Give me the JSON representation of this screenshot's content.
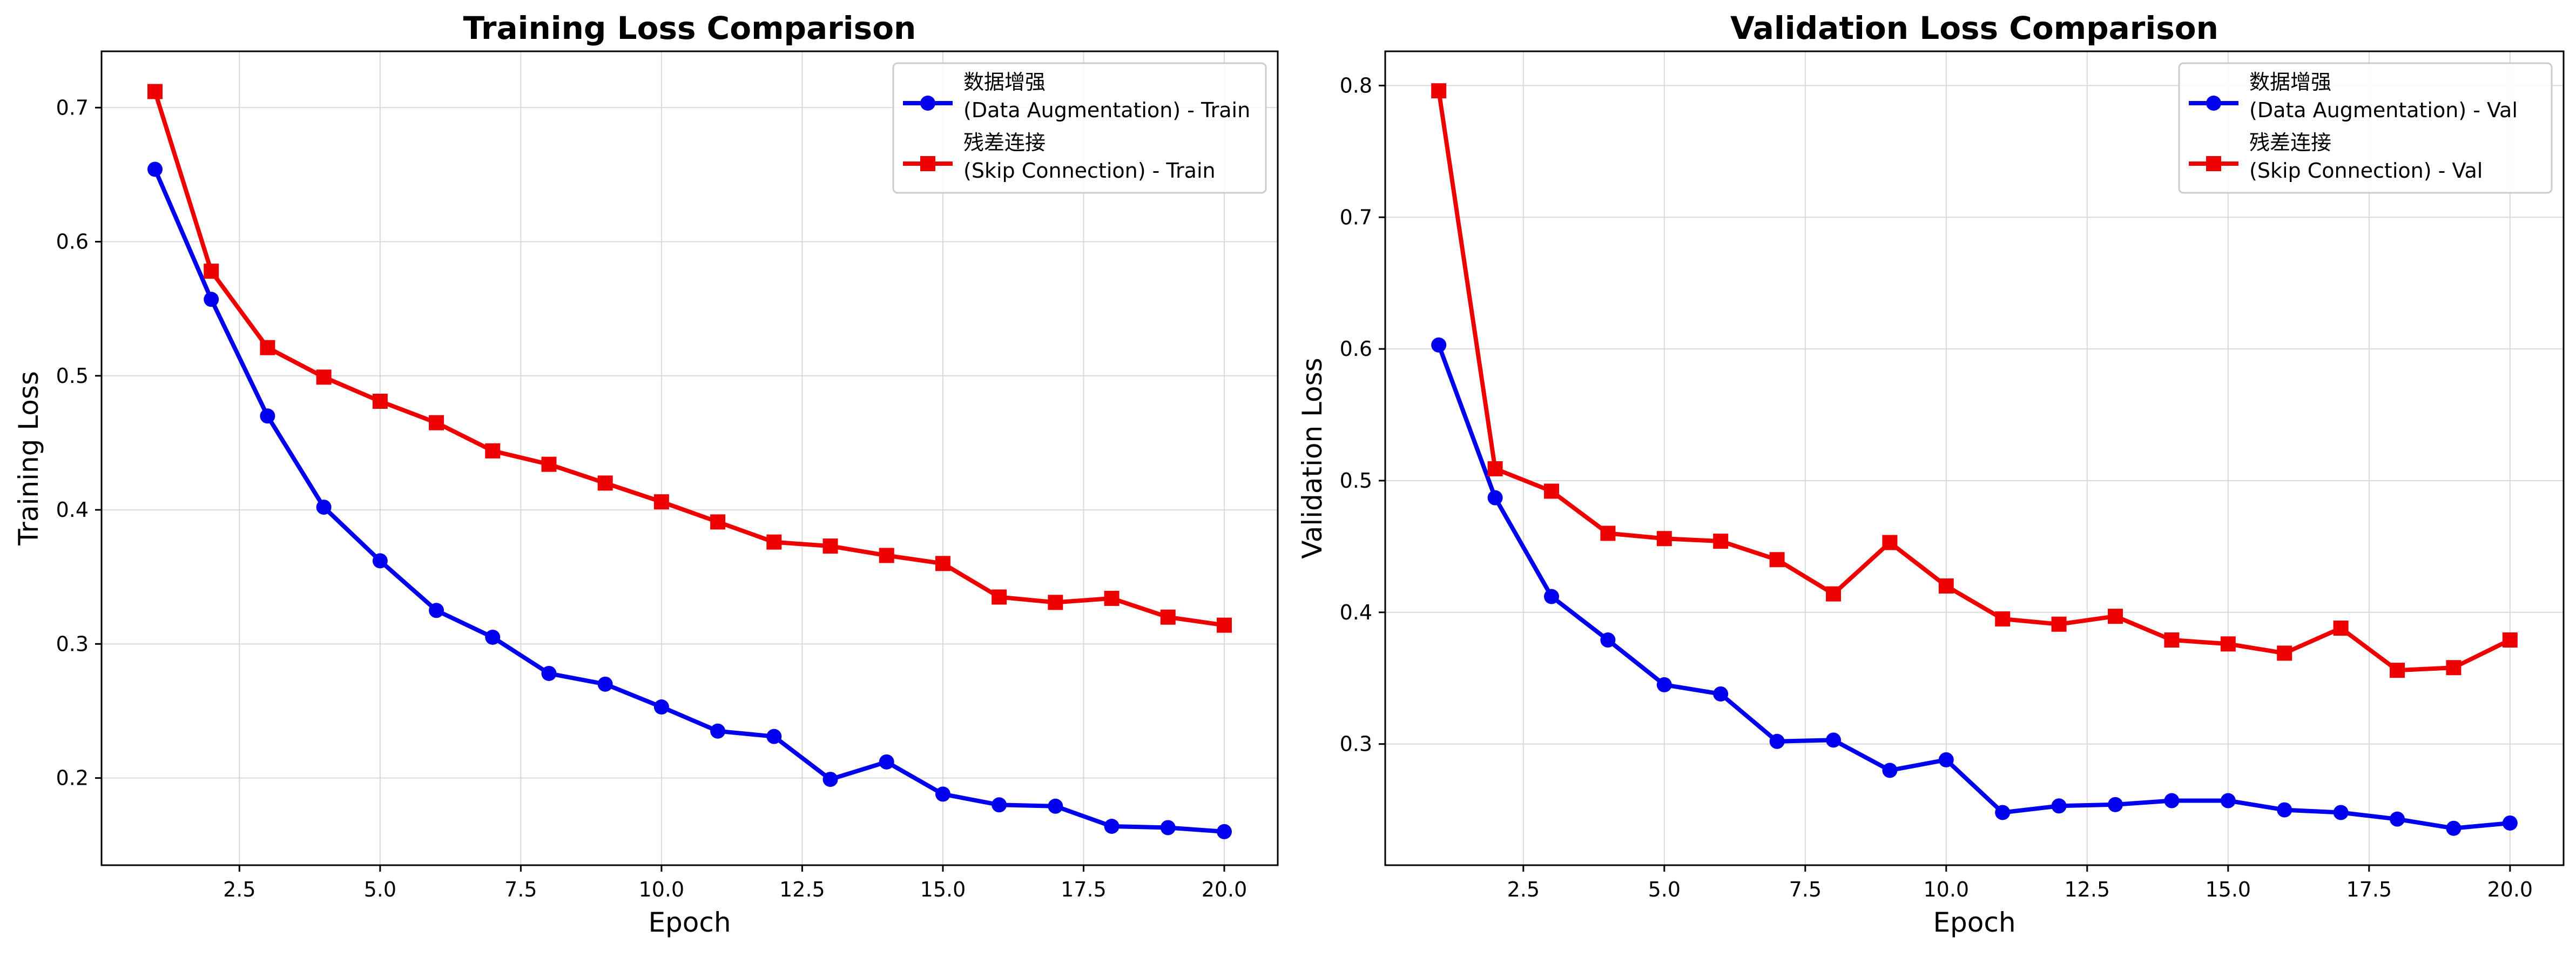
{
  "chart_data": [
    {
      "type": "line",
      "title": "Training Loss Comparison",
      "xlabel": "Epoch",
      "ylabel": "Training Loss",
      "xlim": [
        0.05,
        20.95
      ],
      "ylim": [
        0.135,
        0.742
      ],
      "xticks": [
        2.5,
        5.0,
        7.5,
        10.0,
        12.5,
        15.0,
        17.5,
        20.0
      ],
      "xtick_labels": [
        "2.5",
        "5.0",
        "7.5",
        "10.0",
        "12.5",
        "15.0",
        "17.5",
        "20.0"
      ],
      "yticks": [
        0.2,
        0.3,
        0.4,
        0.5,
        0.6,
        0.7
      ],
      "ytick_labels": [
        "0.2",
        "0.3",
        "0.4",
        "0.5",
        "0.6",
        "0.7"
      ],
      "grid": true,
      "legend_position": "top-right",
      "x": [
        1,
        2,
        3,
        4,
        5,
        6,
        7,
        8,
        9,
        10,
        11,
        12,
        13,
        14,
        15,
        16,
        17,
        18,
        19,
        20
      ],
      "series": [
        {
          "name_line1": "数据增强",
          "name_line2": "(Data Augmentation) - Train",
          "color": "#0000ee",
          "marker": "circle",
          "values": [
            0.654,
            0.557,
            0.47,
            0.402,
            0.362,
            0.325,
            0.305,
            0.278,
            0.27,
            0.253,
            0.235,
            0.231,
            0.199,
            0.212,
            0.188,
            0.18,
            0.179,
            0.164,
            0.163,
            0.16
          ]
        },
        {
          "name_line1": "残差连接",
          "name_line2": "(Skip Connection) - Train",
          "color": "#ee0000",
          "marker": "square",
          "values": [
            0.712,
            0.578,
            0.521,
            0.499,
            0.481,
            0.465,
            0.444,
            0.434,
            0.42,
            0.406,
            0.391,
            0.376,
            0.373,
            0.366,
            0.36,
            0.335,
            0.331,
            0.334,
            0.32,
            0.314
          ]
        }
      ]
    },
    {
      "type": "line",
      "title": "Validation Loss Comparison",
      "xlabel": "Epoch",
      "ylabel": "Validation Loss",
      "xlim": [
        0.05,
        20.95
      ],
      "ylim": [
        0.208,
        0.826
      ],
      "xticks": [
        2.5,
        5.0,
        7.5,
        10.0,
        12.5,
        15.0,
        17.5,
        20.0
      ],
      "xtick_labels": [
        "2.5",
        "5.0",
        "7.5",
        "10.0",
        "12.5",
        "15.0",
        "17.5",
        "20.0"
      ],
      "yticks": [
        0.3,
        0.4,
        0.5,
        0.6,
        0.7,
        0.8
      ],
      "ytick_labels": [
        "0.3",
        "0.4",
        "0.5",
        "0.6",
        "0.7",
        "0.8"
      ],
      "grid": true,
      "legend_position": "top-right",
      "x": [
        1,
        2,
        3,
        4,
        5,
        6,
        7,
        8,
        9,
        10,
        11,
        12,
        13,
        14,
        15,
        16,
        17,
        18,
        19,
        20
      ],
      "series": [
        {
          "name_line1": "数据增强",
          "name_line2": "(Data Augmentation) - Val",
          "color": "#0000ee",
          "marker": "circle",
          "values": [
            0.603,
            0.487,
            0.412,
            0.379,
            0.345,
            0.338,
            0.302,
            0.303,
            0.28,
            0.288,
            0.248,
            0.253,
            0.254,
            0.257,
            0.257,
            0.25,
            0.248,
            0.243,
            0.236,
            0.24
          ]
        },
        {
          "name_line1": "残差连接",
          "name_line2": "(Skip Connection) - Val",
          "color": "#ee0000",
          "marker": "square",
          "values": [
            0.796,
            0.509,
            0.492,
            0.46,
            0.456,
            0.454,
            0.44,
            0.414,
            0.453,
            0.42,
            0.395,
            0.391,
            0.397,
            0.379,
            0.376,
            0.369,
            0.388,
            0.356,
            0.358,
            0.379
          ]
        }
      ]
    }
  ]
}
